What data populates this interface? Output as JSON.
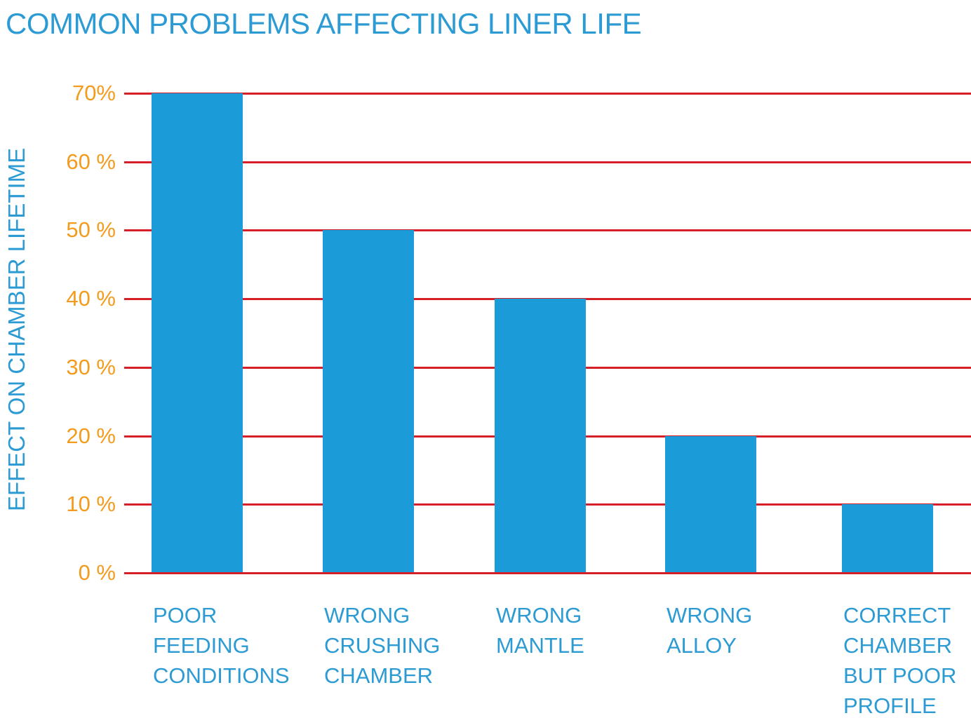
{
  "chart_data": {
    "type": "bar",
    "title": "COMMON PROBLEMS AFFECTING LINER LIFE",
    "xlabel": "",
    "ylabel": "EFFECT ON CHAMBER LIFETIME",
    "categories": [
      "POOR FEEDING CONDITIONS",
      "WRONG CRUSHING CHAMBER",
      "WRONG MANTLE",
      "WRONG ALLOY",
      "CORRECT CHAMBER BUT POOR PROFILE"
    ],
    "category_lines": [
      [
        "POOR",
        "FEEDING",
        "CONDITIONS"
      ],
      [
        "WRONG",
        "CRUSHING",
        "CHAMBER"
      ],
      [
        "WRONG",
        "MANTLE"
      ],
      [
        "WRONG",
        "ALLOY"
      ],
      [
        "CORRECT",
        "CHAMBER",
        "BUT POOR",
        "PROFILE"
      ]
    ],
    "values": [
      70,
      50,
      40,
      20,
      10
    ],
    "yticks": [
      {
        "value": 0,
        "label": "0 %"
      },
      {
        "value": 10,
        "label": "10 %"
      },
      {
        "value": 20,
        "label": "20 %"
      },
      {
        "value": 30,
        "label": "30 %"
      },
      {
        "value": 40,
        "label": "40 %"
      },
      {
        "value": 50,
        "label": "50 %"
      },
      {
        "value": 60,
        "label": "60 %"
      },
      {
        "value": 70,
        "label": "70%"
      }
    ],
    "ylim": [
      0,
      70
    ],
    "grid": true,
    "legend": "none",
    "colors": {
      "bar": "#1b9cd8",
      "grid": "#d5202a",
      "tick_text": "#f39b1d",
      "text": "#2d9bd3"
    }
  }
}
